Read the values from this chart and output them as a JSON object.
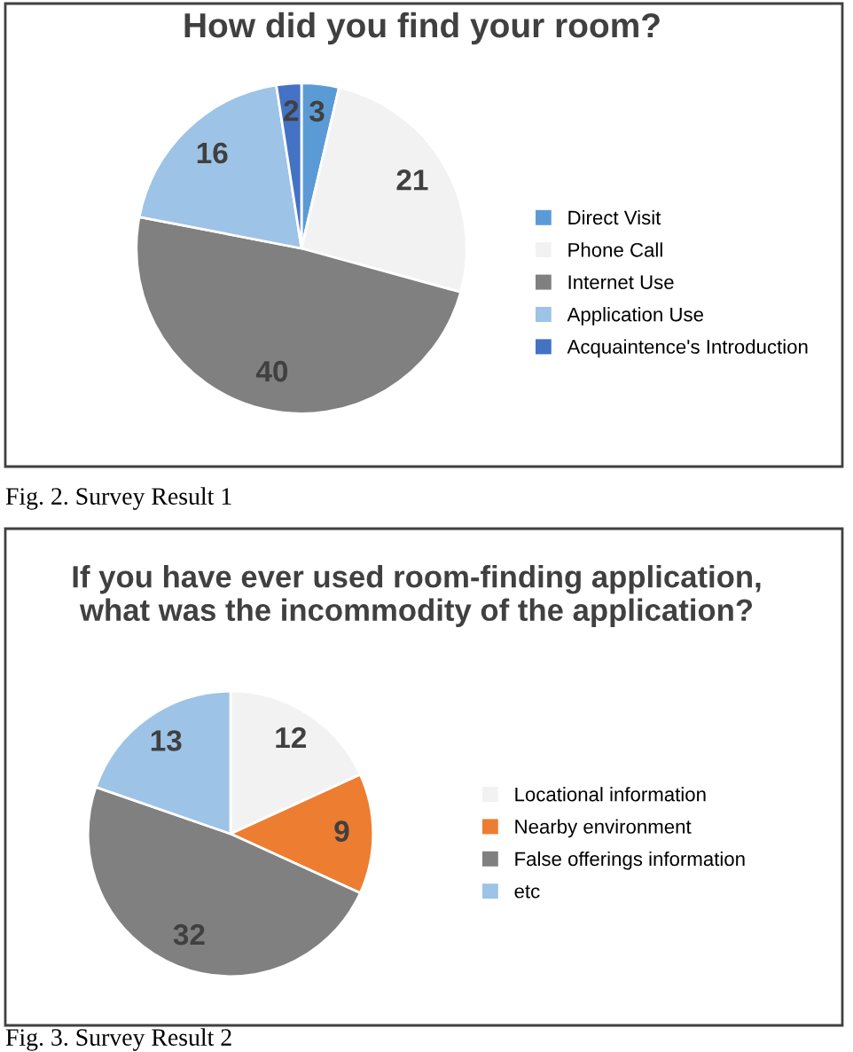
{
  "chart_data": [
    {
      "type": "pie",
      "title": "How did you find your room?",
      "categories": [
        "Direct Visit",
        "Phone Call",
        "Internet Use",
        "Application Use",
        "Acquaintence's Introduction"
      ],
      "values": [
        3,
        21,
        40,
        16,
        2
      ],
      "colors": [
        "#5b9bd5",
        "#f2f2f2",
        "#808080",
        "#9dc3e6",
        "#4472c4"
      ],
      "data_labels": true,
      "legend": "right",
      "annotations": [
        "Fig. 2. Survey Result 1"
      ]
    },
    {
      "type": "pie",
      "title": "If you have ever used room-finding application,\nwhat was the incommodity of the application?",
      "categories": [
        "Locational information",
        "Nearby environment",
        "False offerings information",
        "etc"
      ],
      "values": [
        12,
        9,
        32,
        13
      ],
      "colors": [
        "#f2f2f2",
        "#ed7d31",
        "#808080",
        "#9dc3e6"
      ],
      "data_labels": true,
      "legend": "right",
      "annotations": [
        "Fig. 3. Survey Result 2"
      ]
    }
  ]
}
